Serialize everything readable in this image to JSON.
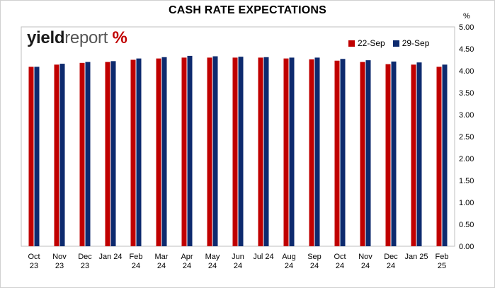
{
  "title": "CASH RATE EXPECTATIONS",
  "unit": "%",
  "logo": {
    "part1": "yield",
    "part2": "report",
    "part3": "%"
  },
  "colors": {
    "series1": "#c00000",
    "series2": "#0d2a6e"
  },
  "chart_data": {
    "type": "bar",
    "title": "CASH RATE EXPECTATIONS",
    "ylabel": "%",
    "ylim": [
      0,
      5
    ],
    "ytick_step": 0.5,
    "yaxis_position": "right",
    "legend_position": "top-right",
    "grid": false,
    "categories": [
      [
        "Oct",
        "23"
      ],
      [
        "Nov",
        "23"
      ],
      [
        "Dec",
        "23"
      ],
      [
        "Jan 24"
      ],
      [
        "Feb",
        "24"
      ],
      [
        "Mar",
        "24"
      ],
      [
        "Apr",
        "24"
      ],
      [
        "May",
        "24"
      ],
      [
        "Jun",
        "24"
      ],
      [
        "Jul 24"
      ],
      [
        "Aug",
        "24"
      ],
      [
        "Sep",
        "24"
      ],
      [
        "Oct",
        "24"
      ],
      [
        "Nov",
        "24"
      ],
      [
        "Dec",
        "24"
      ],
      [
        "Jan 25"
      ],
      [
        "Feb",
        "25"
      ]
    ],
    "series": [
      {
        "name": "22-Sep",
        "color": "#c00000",
        "values": [
          4.09,
          4.14,
          4.18,
          4.2,
          4.25,
          4.28,
          4.3,
          4.3,
          4.3,
          4.3,
          4.28,
          4.26,
          4.23,
          4.2,
          4.15,
          4.14,
          4.09
        ]
      },
      {
        "name": "29-Sep",
        "color": "#0d2a6e",
        "values": [
          4.09,
          4.16,
          4.2,
          4.22,
          4.28,
          4.31,
          4.34,
          4.33,
          4.32,
          4.31,
          4.3,
          4.3,
          4.27,
          4.24,
          4.21,
          4.19,
          4.14
        ]
      }
    ]
  }
}
